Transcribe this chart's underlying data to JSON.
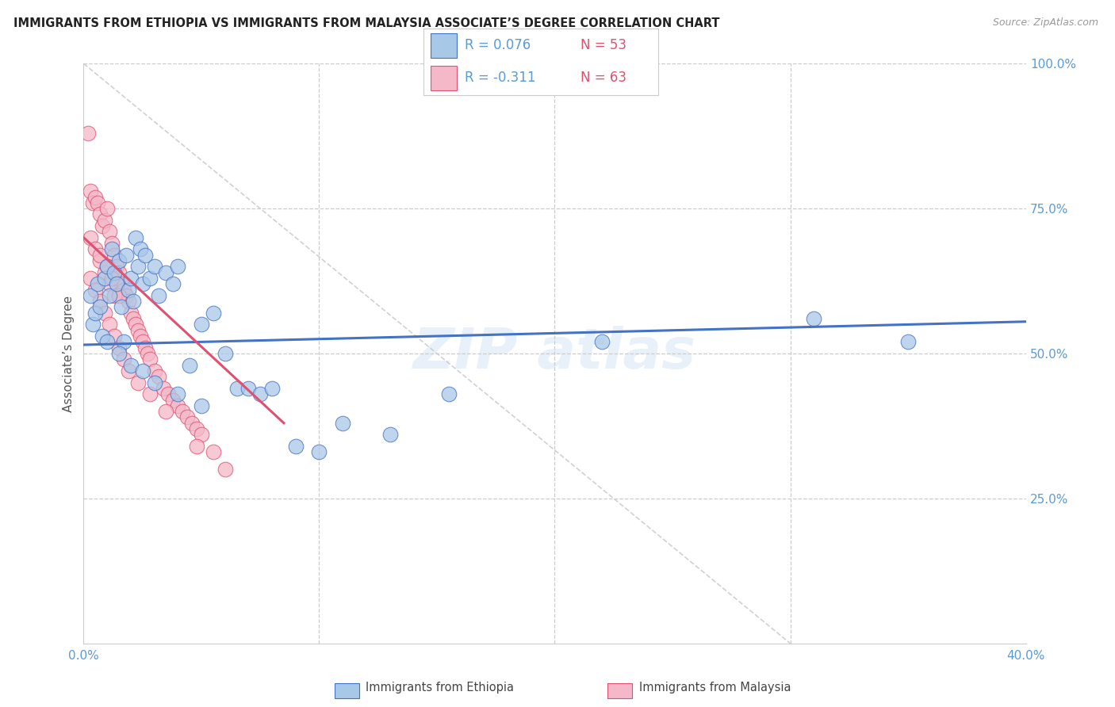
{
  "title": "IMMIGRANTS FROM ETHIOPIA VS IMMIGRANTS FROM MALAYSIA ASSOCIATE’S DEGREE CORRELATION CHART",
  "source": "Source: ZipAtlas.com",
  "ylabel": "Associate’s Degree",
  "xlim": [
    0.0,
    0.4
  ],
  "ylim": [
    0.0,
    1.0
  ],
  "color_ethiopia": "#a8c8e8",
  "color_malaysia": "#f4b8c8",
  "color_line_ethiopia": "#4472c4",
  "color_line_malaysia": "#e05070",
  "color_diag": "#c8c8c8",
  "color_title": "#222222",
  "color_source": "#999999",
  "color_axis": "#5b9bd5",
  "ethiopia_x": [
    0.003,
    0.004,
    0.005,
    0.006,
    0.007,
    0.008,
    0.009,
    0.01,
    0.011,
    0.012,
    0.013,
    0.014,
    0.015,
    0.016,
    0.017,
    0.018,
    0.019,
    0.02,
    0.021,
    0.022,
    0.023,
    0.024,
    0.025,
    0.026,
    0.028,
    0.03,
    0.032,
    0.035,
    0.038,
    0.04,
    0.045,
    0.05,
    0.055,
    0.06,
    0.065,
    0.07,
    0.075,
    0.08,
    0.09,
    0.1,
    0.11,
    0.13,
    0.155,
    0.01,
    0.015,
    0.02,
    0.025,
    0.03,
    0.04,
    0.05,
    0.22,
    0.31,
    0.35
  ],
  "ethiopia_y": [
    0.6,
    0.55,
    0.57,
    0.62,
    0.58,
    0.53,
    0.63,
    0.65,
    0.6,
    0.68,
    0.64,
    0.62,
    0.66,
    0.58,
    0.52,
    0.67,
    0.61,
    0.63,
    0.59,
    0.7,
    0.65,
    0.68,
    0.62,
    0.67,
    0.63,
    0.65,
    0.6,
    0.64,
    0.62,
    0.65,
    0.48,
    0.55,
    0.57,
    0.5,
    0.44,
    0.44,
    0.43,
    0.44,
    0.34,
    0.33,
    0.38,
    0.36,
    0.43,
    0.52,
    0.5,
    0.48,
    0.47,
    0.45,
    0.43,
    0.41,
    0.52,
    0.56,
    0.52
  ],
  "malaysia_x": [
    0.002,
    0.003,
    0.004,
    0.005,
    0.006,
    0.007,
    0.008,
    0.009,
    0.01,
    0.011,
    0.012,
    0.013,
    0.014,
    0.015,
    0.016,
    0.017,
    0.018,
    0.019,
    0.02,
    0.021,
    0.022,
    0.023,
    0.024,
    0.025,
    0.026,
    0.027,
    0.028,
    0.03,
    0.032,
    0.034,
    0.036,
    0.038,
    0.04,
    0.042,
    0.044,
    0.046,
    0.048,
    0.05,
    0.055,
    0.06,
    0.003,
    0.005,
    0.007,
    0.009,
    0.011,
    0.013,
    0.015,
    0.017,
    0.019,
    0.023,
    0.028,
    0.035,
    0.048,
    0.003,
    0.005,
    0.007,
    0.009,
    0.011,
    0.013,
    0.007,
    0.01,
    0.012,
    0.015
  ],
  "malaysia_y": [
    0.88,
    0.78,
    0.76,
    0.77,
    0.76,
    0.74,
    0.72,
    0.73,
    0.75,
    0.71,
    0.69,
    0.67,
    0.65,
    0.64,
    0.62,
    0.61,
    0.6,
    0.59,
    0.57,
    0.56,
    0.55,
    0.54,
    0.53,
    0.52,
    0.51,
    0.5,
    0.49,
    0.47,
    0.46,
    0.44,
    0.43,
    0.42,
    0.41,
    0.4,
    0.39,
    0.38,
    0.37,
    0.36,
    0.33,
    0.3,
    0.63,
    0.61,
    0.59,
    0.57,
    0.55,
    0.53,
    0.51,
    0.49,
    0.47,
    0.45,
    0.43,
    0.4,
    0.34,
    0.7,
    0.68,
    0.66,
    0.64,
    0.62,
    0.6,
    0.67,
    0.65,
    0.63,
    0.6
  ]
}
